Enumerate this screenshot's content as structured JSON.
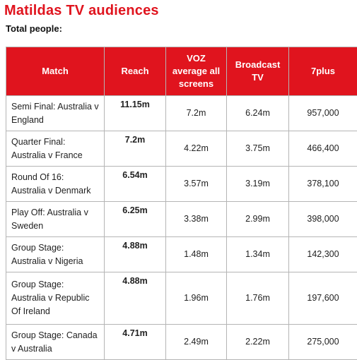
{
  "header": {
    "title": "Matildas TV audiences",
    "subtitle": "Total people:"
  },
  "table": {
    "columns": [
      "Match",
      "Reach",
      "VOZ average all screens",
      "Broadcast TV",
      "7plus"
    ],
    "rows": [
      {
        "match": "Semi Final: Australia v England",
        "reach": "11.15m",
        "voz": "7.2m",
        "broadcast": "6.24m",
        "sevenplus": "957,000"
      },
      {
        "match": "Quarter Final: Australia v France",
        "reach": "7.2m",
        "voz": "4.22m",
        "broadcast": "3.75m",
        "sevenplus": "466,400"
      },
      {
        "match": "Round Of 16: Australia v Denmark",
        "reach": "6.54m",
        "voz": "3.57m",
        "broadcast": "3.19m",
        "sevenplus": "378,100"
      },
      {
        "match": "Play Off: Australia v Sweden",
        "reach": "6.25m",
        "voz": "3.38m",
        "broadcast": "2.99m",
        "sevenplus": "398,000"
      },
      {
        "match": "Group Stage: Australia v Nigeria",
        "reach": "4.88m",
        "voz": "1.48m",
        "broadcast": "1.34m",
        "sevenplus": "142,300"
      },
      {
        "match": "Group Stage: Australia v Republic Of Ireland",
        "reach": "4.88m",
        "voz": "1.96m",
        "broadcast": "1.76m",
        "sevenplus": "197,600"
      },
      {
        "match": "Group Stage: Canada v Australia",
        "reach": "4.71m",
        "voz": "2.49m",
        "broadcast": "2.22m",
        "sevenplus": "275,000"
      }
    ]
  }
}
